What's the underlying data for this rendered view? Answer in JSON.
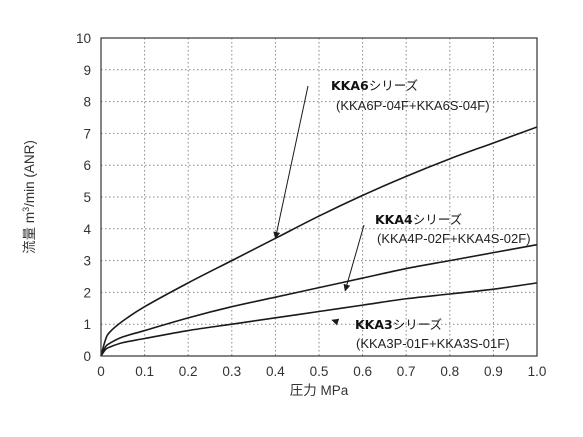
{
  "chart_data": {
    "type": "line",
    "xlabel": "圧力 MPa",
    "ylabel": "流量 m3/min (ANR)",
    "ylabel_parts": {
      "prefix": "流量 m",
      "sup": "3",
      "suffix": "/min (ANR)"
    },
    "xlim": [
      0,
      1.0
    ],
    "ylim": [
      0,
      10
    ],
    "x_ticks": [
      "0",
      "0.1",
      "0.2",
      "0.3",
      "0.4",
      "0.5",
      "0.6",
      "0.7",
      "0.8",
      "0.9",
      "1.0"
    ],
    "y_ticks": [
      "0",
      "1",
      "2",
      "3",
      "4",
      "5",
      "6",
      "7",
      "8",
      "9",
      "10"
    ],
    "grid": true,
    "grid_style": "dotted",
    "series": [
      {
        "name": "KKA6シリーズ (KKA6P-04F+KKA6S-04F)",
        "x": [
          0,
          0.01,
          0.02,
          0.05,
          0.1,
          0.2,
          0.3,
          0.4,
          0.5,
          0.6,
          0.7,
          0.8,
          0.9,
          1.0
        ],
        "y": [
          0,
          0.5,
          0.75,
          1.1,
          1.55,
          2.3,
          3.0,
          3.7,
          4.4,
          5.05,
          5.65,
          6.2,
          6.7,
          7.2
        ]
      },
      {
        "name": "KKA4シリーズ (KKA4P-02F+KKA4S-02F)",
        "x": [
          0,
          0.01,
          0.02,
          0.05,
          0.1,
          0.2,
          0.3,
          0.4,
          0.5,
          0.6,
          0.7,
          0.8,
          0.9,
          1.0
        ],
        "y": [
          0,
          0.28,
          0.4,
          0.6,
          0.8,
          1.2,
          1.55,
          1.85,
          2.15,
          2.45,
          2.75,
          3.0,
          3.25,
          3.5
        ]
      },
      {
        "name": "KKA3シリーズ (KKA3P-01F+KKA3S-01F)",
        "x": [
          0,
          0.01,
          0.02,
          0.05,
          0.1,
          0.2,
          0.3,
          0.4,
          0.5,
          0.6,
          0.7,
          0.8,
          0.9,
          1.0
        ],
        "y": [
          0,
          0.2,
          0.28,
          0.42,
          0.55,
          0.8,
          1.0,
          1.2,
          1.4,
          1.6,
          1.8,
          1.95,
          2.1,
          2.3
        ]
      }
    ],
    "annotations": [
      {
        "series": "KKA6",
        "label_bold": "KKA6",
        "label_kana": "シリーズ",
        "model": "(KKA6P-04F+KKA6S-04F)",
        "arrow_to": {
          "x": 0.4,
          "y": 3.7
        }
      },
      {
        "series": "KKA4",
        "label_bold": "KKA4",
        "label_kana": "シリーズ",
        "model": "(KKA4P-02F+KKA4S-02F)",
        "arrow_to": {
          "x": 0.56,
          "y": 2.05
        }
      },
      {
        "series": "KKA3",
        "label_bold": "KKA3",
        "label_kana": "シリーズ",
        "model": "(KKA3P-01F+KKA3S-01F)",
        "arrow_to": {
          "x": 0.53,
          "y": 1.13
        }
      }
    ],
    "colors": {
      "line": "#1a1a1a",
      "grid": "#888888",
      "frame": "#333333"
    }
  }
}
